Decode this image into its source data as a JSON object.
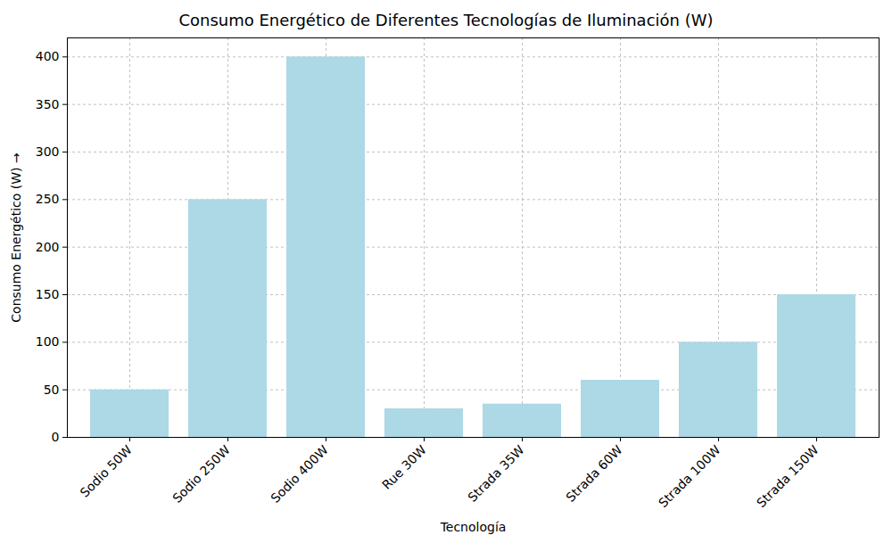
{
  "chart_data": {
    "type": "bar",
    "title": "Consumo Energético de Diferentes Tecnologías de Iluminación (W)",
    "x_label": "Tecnología",
    "y_label": "Consumo Energético (W)",
    "categories": [
      "Sodio 50W",
      "Sodio 250W",
      "Sodio 400W",
      "Rue 30W",
      "Strada 35W",
      "Strada 60W",
      "Strada 100W",
      "Strada 150W"
    ],
    "values": [
      50,
      250,
      400,
      30,
      35,
      60,
      100,
      150
    ],
    "color": "#add8e6",
    "ylim": [
      0,
      420
    ],
    "yticks": [
      0,
      50,
      100,
      150,
      200,
      250,
      300,
      350,
      400
    ],
    "grid": true
  }
}
